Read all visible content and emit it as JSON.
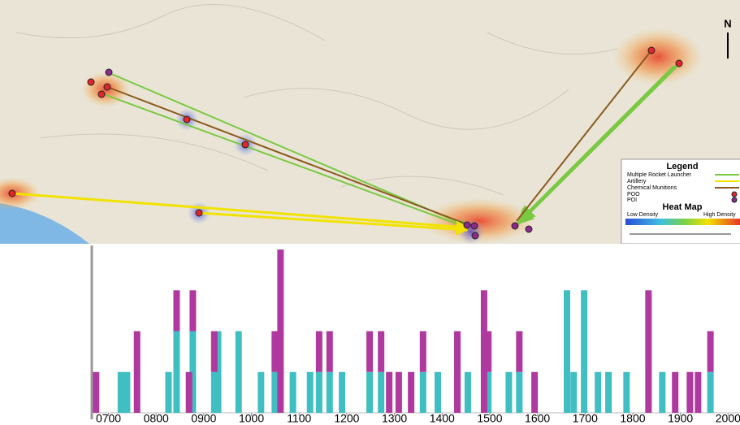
{
  "map": {
    "north": "N",
    "legend": {
      "title": "Legend",
      "items": [
        "Multiple Rocket Launcher",
        "Artillery",
        "Chemical Munitions",
        "POO",
        "POI"
      ],
      "heat_title": "Heat Map",
      "low": "Low Density",
      "high": "High Density"
    }
  },
  "chart_data": {
    "type": "bar",
    "stacked": true,
    "x": [
      6.74,
      7.26,
      7.39,
      7.6,
      8.26,
      8.43,
      8.69,
      8.77,
      9.22,
      9.3,
      9.73,
      10.2,
      10.49,
      10.61,
      10.87,
      11.23,
      11.42,
      11.64,
      11.9,
      12.48,
      12.72,
      12.89,
      13.09,
      13.35,
      13.6,
      13.91,
      14.32,
      14.54,
      14.88,
      14.97,
      15.4,
      15.62,
      15.94,
      16.62,
      16.76,
      16.98,
      17.27,
      17.49,
      17.87,
      18.33,
      18.62,
      18.89,
      19.2,
      19.37,
      19.63
    ],
    "series": [
      {
        "color": "#3fbfc2",
        "values": [
          0,
          1,
          1,
          0,
          1,
          2,
          0,
          2,
          1,
          2,
          2,
          1,
          1,
          0,
          1,
          1,
          1,
          1,
          1,
          1,
          1,
          0,
          0,
          0,
          1,
          1,
          0,
          1,
          0,
          1,
          1,
          1,
          0,
          3,
          1,
          3,
          1,
          1,
          1,
          0,
          1,
          0,
          0,
          0,
          1
        ]
      },
      {
        "color": "#b0399f",
        "values": [
          1,
          0,
          0,
          2,
          0,
          1,
          1,
          1,
          1,
          0,
          0,
          0,
          1,
          4,
          0,
          0,
          1,
          1,
          0,
          1,
          1,
          1,
          1,
          1,
          1,
          0,
          2,
          0,
          3,
          1,
          0,
          1,
          1,
          0,
          0,
          0,
          0,
          0,
          0,
          3,
          0,
          1,
          1,
          1,
          1
        ]
      }
    ],
    "xlim": [
      6.65,
      20.25
    ],
    "xticks": [
      {
        "value": 7,
        "label": "0700"
      },
      {
        "value": 8,
        "label": "0800"
      },
      {
        "value": 9,
        "label": "0900"
      },
      {
        "value": 10,
        "label": "1000"
      },
      {
        "value": 11,
        "label": "1100"
      },
      {
        "value": 12,
        "label": "1200"
      },
      {
        "value": 13,
        "label": "1300"
      },
      {
        "value": 14,
        "label": "1400"
      },
      {
        "value": 15,
        "label": "1500"
      },
      {
        "value": 16,
        "label": "1600"
      },
      {
        "value": 17,
        "label": "1700"
      },
      {
        "value": 18,
        "label": "1800"
      },
      {
        "value": 19,
        "label": "1900"
      },
      {
        "value": 20,
        "label": "2000"
      }
    ],
    "ylim": [
      0,
      4.1
    ]
  }
}
